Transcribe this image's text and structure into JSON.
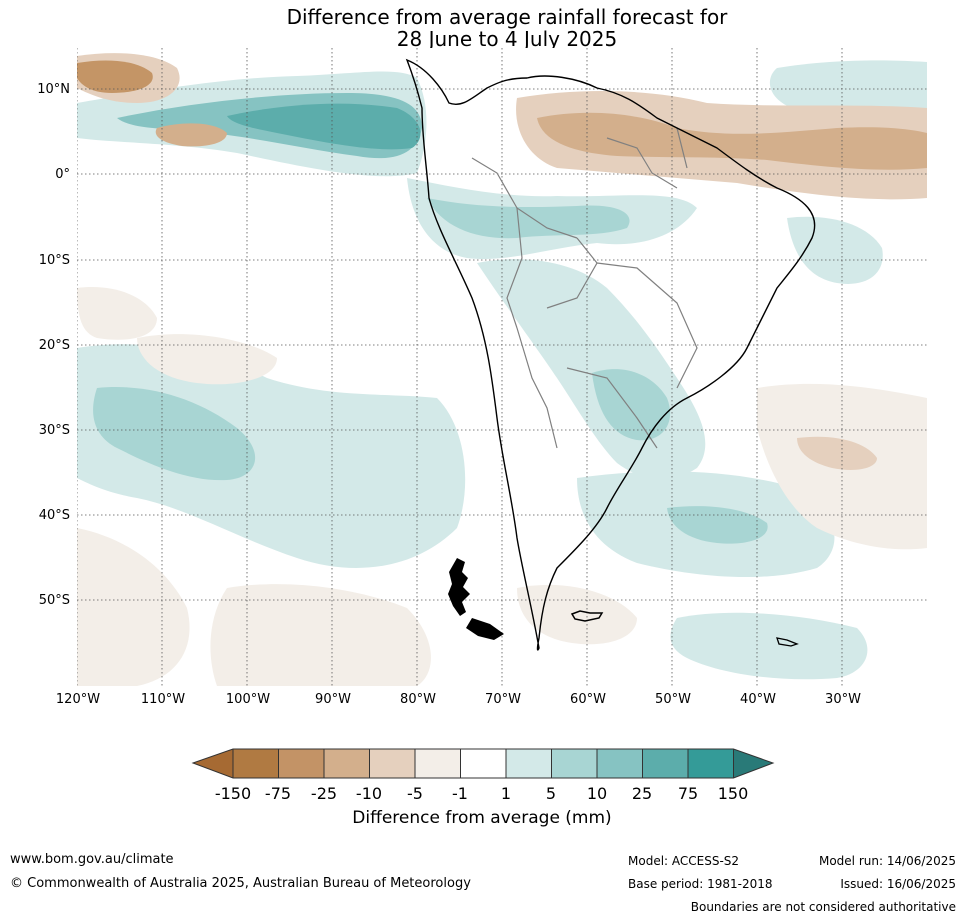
{
  "title": {
    "line1": "Difference from average rainfall forecast for",
    "line2": "28 June to 4 July 2025"
  },
  "map": {
    "lat_ticks": [
      "10°N",
      "0°",
      "10°S",
      "20°S",
      "30°S",
      "40°S",
      "50°S"
    ],
    "lon_ticks": [
      "120°W",
      "110°W",
      "100°W",
      "90°W",
      "80°W",
      "70°W",
      "60°W",
      "50°W",
      "40°W",
      "30°W"
    ],
    "colors": {
      "ocean": "#ffffff",
      "coast": "#000000",
      "borders": "#808080",
      "wet_light": "#d3e9e8",
      "wet_mid": "#a8d5d3",
      "wet_strong": "#86c3c2",
      "wet_dark": "#5cadab",
      "dry_light": "#f3eee8",
      "dry_mid": "#e5d0be",
      "dry_strong": "#d3af8c",
      "dry_dark": "#c49566"
    }
  },
  "colorbar": {
    "labels": [
      "-150",
      "-75",
      "-25",
      "-10",
      "-5",
      "-1",
      "1",
      "5",
      "10",
      "25",
      "75",
      "150"
    ],
    "colors": [
      "#a66a33",
      "#b07a42",
      "#c39366",
      "#d3af8c",
      "#e5d0be",
      "#f3eee8",
      "#ffffff",
      "#d3e9e8",
      "#a8d5d3",
      "#86c3c2",
      "#5cadab",
      "#349b98",
      "#297a78"
    ],
    "title": "Difference from average (mm)"
  },
  "footer": {
    "website": "www.bom.gov.au/climate",
    "copyright": "© Commonwealth of Australia 2025, Australian Bureau of Meteorology",
    "model": "Model: ACCESS-S2",
    "base_period": "Base period: 1981-2018",
    "model_run": "Model run: 14/06/2025",
    "issued": "Issued: 16/06/2025",
    "boundaries": "Boundaries are not considered authoritative"
  }
}
